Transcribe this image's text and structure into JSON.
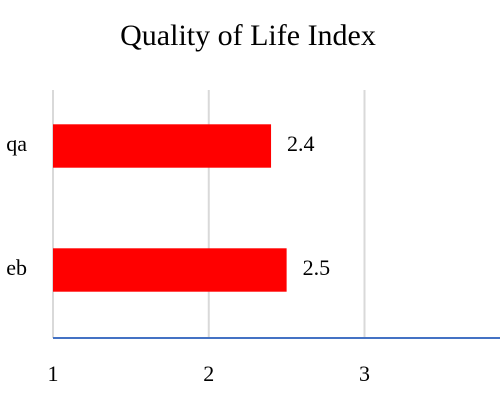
{
  "chart_data": {
    "type": "bar",
    "orientation": "horizontal",
    "title": "Quality of Life Index",
    "categories": [
      "qa",
      "eb"
    ],
    "values": [
      2.4,
      2.5
    ],
    "color": "#ff0000",
    "xlim": [
      1,
      3.87
    ],
    "xticks": [
      1,
      2,
      3
    ],
    "grid": true,
    "axis_color": "#4472c4"
  }
}
